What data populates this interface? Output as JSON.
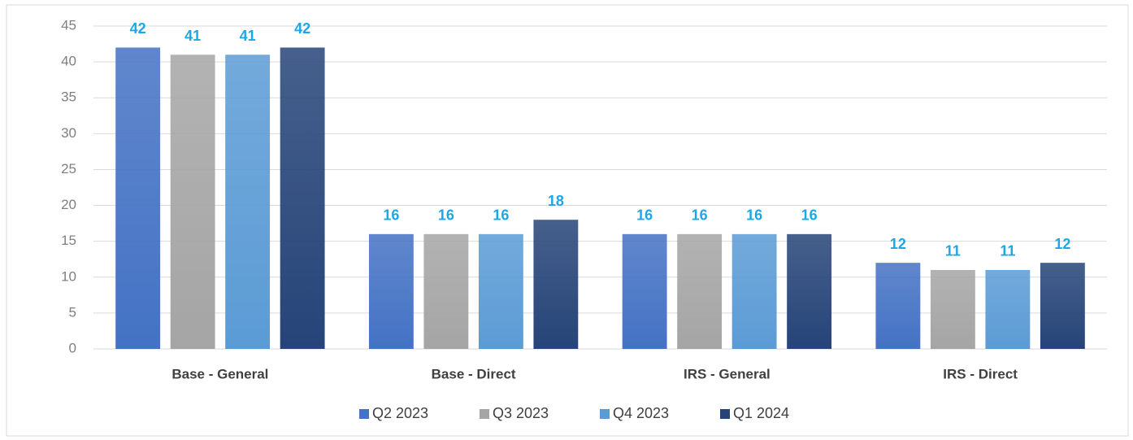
{
  "chart_data": {
    "type": "bar",
    "categories": [
      "Base - General",
      "Base - Direct",
      "IRS - General",
      "IRS - Direct"
    ],
    "series": [
      {
        "name": "Q2 2023",
        "color": "#4472c4",
        "values": [
          42,
          16,
          16,
          12
        ]
      },
      {
        "name": "Q3 2023",
        "color": "#a5a5a5",
        "values": [
          41,
          16,
          16,
          11
        ]
      },
      {
        "name": "Q4 2023",
        "color": "#5b9bd5",
        "values": [
          41,
          16,
          16,
          11
        ]
      },
      {
        "name": "Q1 2024",
        "color": "#264478",
        "values": [
          42,
          18,
          16,
          12
        ]
      }
    ],
    "ylim": [
      0,
      45
    ],
    "yticks": [
      0,
      5,
      10,
      15,
      20,
      25,
      30,
      35,
      40,
      45
    ],
    "grid": true,
    "legend": "bottom"
  }
}
